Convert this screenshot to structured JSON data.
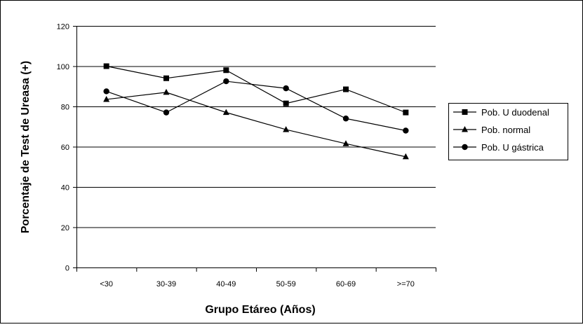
{
  "chart_data": {
    "type": "line",
    "title": "",
    "xlabel": "Grupo Etáreo (Años)",
    "ylabel": "Porcentaje de Test de Ureasa (+)",
    "categories": [
      "<30",
      "30-39",
      "40-49",
      "50-59",
      "60-69",
      ">=70"
    ],
    "ylim": [
      0,
      120
    ],
    "yticks": [
      0,
      20,
      40,
      60,
      80,
      100,
      120
    ],
    "grid": "horizontal",
    "legend_position": "right",
    "series": [
      {
        "name": "Pob. U duodenal",
        "marker": "square",
        "color": "#000000",
        "values": [
          100,
          94,
          98,
          81.5,
          88.5,
          77
        ]
      },
      {
        "name": "Pob. normal",
        "marker": "triangle",
        "color": "#000000",
        "values": [
          83.5,
          87,
          77,
          68.5,
          61.5,
          55
        ]
      },
      {
        "name": "Pob. U gástrica",
        "marker": "circle",
        "color": "#000000",
        "values": [
          87.5,
          77,
          92.5,
          89,
          74,
          68
        ]
      }
    ]
  }
}
